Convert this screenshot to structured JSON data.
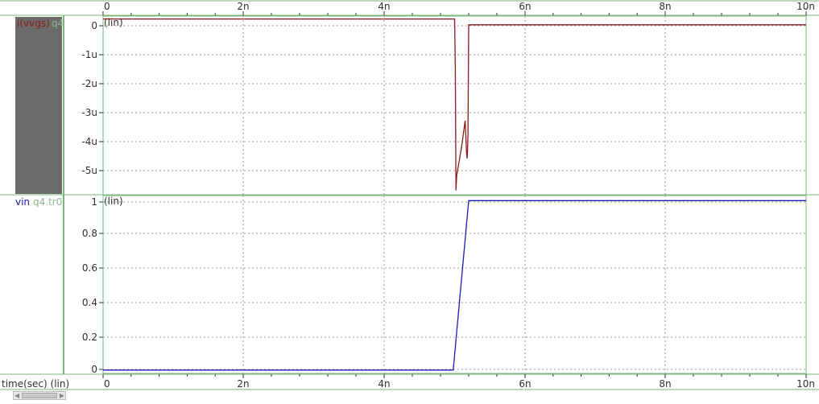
{
  "colors": {
    "frame": "#7db67d",
    "grid": "#9a9a9a",
    "text": "#303030",
    "trace_current": "#8b1a1a",
    "trace_voltage": "#1a1ab8",
    "label_gray": "#8fb58f",
    "swatch": "#6b6b6b"
  },
  "x_axis": {
    "label": "time(sec) (lin)",
    "ticks": [
      "0",
      "2n",
      "4n",
      "6n",
      "8n",
      "10n"
    ]
  },
  "panels": [
    {
      "trace_name": "i(vvgs)",
      "file_name": "q4",
      "scale_tag": "(lin)",
      "y_ticks": [
        "0",
        "-1u",
        "-2u",
        "-3u",
        "-4u",
        "-5u"
      ]
    },
    {
      "trace_name": "vin",
      "file_name": "q4.tr0",
      "scale_tag": "(lin)",
      "y_ticks": [
        "1",
        "0.8",
        "0.6",
        "0.4",
        "0.2",
        "0"
      ]
    }
  ],
  "chart_data": [
    {
      "type": "line",
      "title": "",
      "xlabel": "time(sec) (lin)",
      "ylabel": "",
      "xlim": [
        0,
        1e-08
      ],
      "ylim": [
        -5.85e-06,
        3e-07
      ],
      "y_scale": "lin",
      "grid": true,
      "series": [
        {
          "name": "i(vvgs)",
          "color": "#8b1a1a",
          "x": [
            0,
            4.98e-09,
            5e-09,
            5.01e-09,
            5.02e-09,
            5.03e-09,
            5.05e-09,
            5.1e-09,
            5.15e-09,
            5.17e-09,
            5.18e-09,
            5.19e-09,
            5.2e-09,
            5.21e-09,
            1e-08
          ],
          "y": [
            2e-07,
            2e-07,
            2e-07,
            -1.5e-06,
            -5.7e-06,
            -5.2e-06,
            -4.9e-06,
            -4.2e-06,
            -3.3e-06,
            -4.4e-06,
            -4.6e-06,
            -3.8e-06,
            0.0,
            0.0,
            0.0
          ]
        }
      ]
    },
    {
      "type": "line",
      "title": "",
      "xlabel": "time(sec) (lin)",
      "ylabel": "",
      "xlim": [
        0,
        1e-08
      ],
      "ylim": [
        -0.02,
        1.03
      ],
      "y_scale": "lin",
      "grid": true,
      "series": [
        {
          "name": "vin",
          "color": "#1a1ab8",
          "x": [
            0,
            4.98e-09,
            5.2e-09,
            1e-08
          ],
          "y": [
            0,
            0,
            1,
            1
          ]
        }
      ]
    }
  ]
}
